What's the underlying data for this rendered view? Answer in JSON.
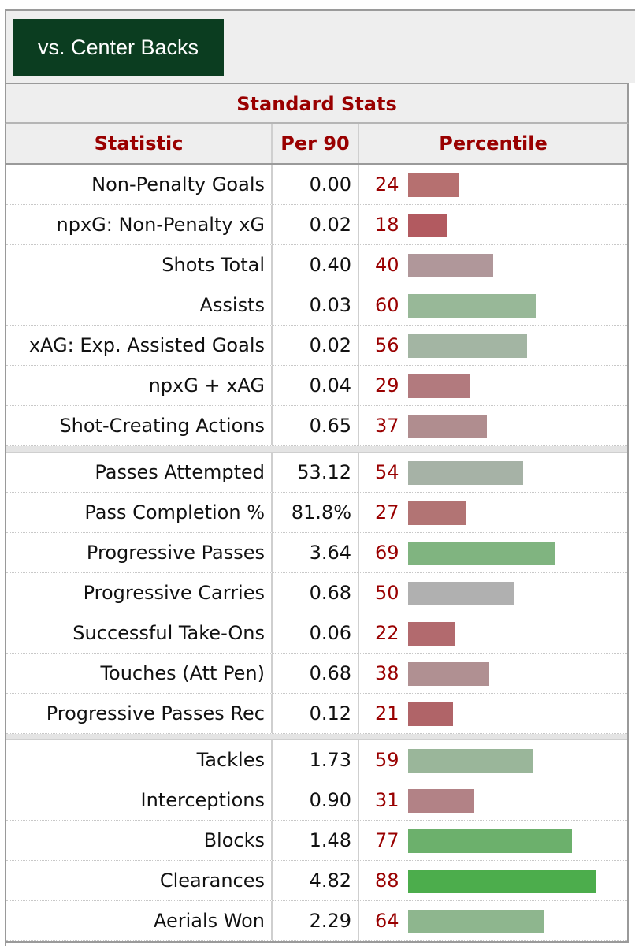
{
  "compare_button": "vs. Center Backs",
  "table_title": "Standard Stats",
  "headers": {
    "statistic": "Statistic",
    "per90": "Per 90",
    "percentile": "Percentile"
  },
  "groups": [
    [
      {
        "stat": "Non-Penalty Goals",
        "per90": "0.00",
        "pct": 24,
        "color": "#b67070"
      },
      {
        "stat": "npxG: Non-Penalty xG",
        "per90": "0.02",
        "pct": 18,
        "color": "#b25a60"
      },
      {
        "stat": "Shots Total",
        "per90": "0.40",
        "pct": 40,
        "color": "#b0979a"
      },
      {
        "stat": "Assists",
        "per90": "0.03",
        "pct": 60,
        "color": "#98b898"
      },
      {
        "stat": "xAG: Exp. Assisted Goals",
        "per90": "0.02",
        "pct": 56,
        "color": "#a3b5a3"
      },
      {
        "stat": "npxG + xAG",
        "per90": "0.04",
        "pct": 29,
        "color": "#b27a7e"
      },
      {
        "stat": "Shot-Creating Actions",
        "per90": "0.65",
        "pct": 37,
        "color": "#b08d8f"
      }
    ],
    [
      {
        "stat": "Passes Attempted",
        "per90": "53.12",
        "pct": 54,
        "color": "#a6b2a6"
      },
      {
        "stat": "Pass Completion %",
        "per90": "81.8%",
        "pct": 27,
        "color": "#b27474"
      },
      {
        "stat": "Progressive Passes",
        "per90": "3.64",
        "pct": 69,
        "color": "#80b480"
      },
      {
        "stat": "Progressive Carries",
        "per90": "0.68",
        "pct": 50,
        "color": "#b0b0b0"
      },
      {
        "stat": "Successful Take-Ons",
        "per90": "0.06",
        "pct": 22,
        "color": "#b26a6e"
      },
      {
        "stat": "Touches (Att Pen)",
        "per90": "0.68",
        "pct": 38,
        "color": "#b09092"
      },
      {
        "stat": "Progressive Passes Rec",
        "per90": "0.12",
        "pct": 21,
        "color": "#b06468"
      }
    ],
    [
      {
        "stat": "Tackles",
        "per90": "1.73",
        "pct": 59,
        "color": "#9ab69a"
      },
      {
        "stat": "Interceptions",
        "per90": "0.90",
        "pct": 31,
        "color": "#b28286"
      },
      {
        "stat": "Blocks",
        "per90": "1.48",
        "pct": 77,
        "color": "#6cb06c"
      },
      {
        "stat": "Clearances",
        "per90": "4.82",
        "pct": 88,
        "color": "#4cad4c"
      },
      {
        "stat": "Aerials Won",
        "per90": "2.29",
        "pct": 64,
        "color": "#8eb68e"
      }
    ]
  ]
}
